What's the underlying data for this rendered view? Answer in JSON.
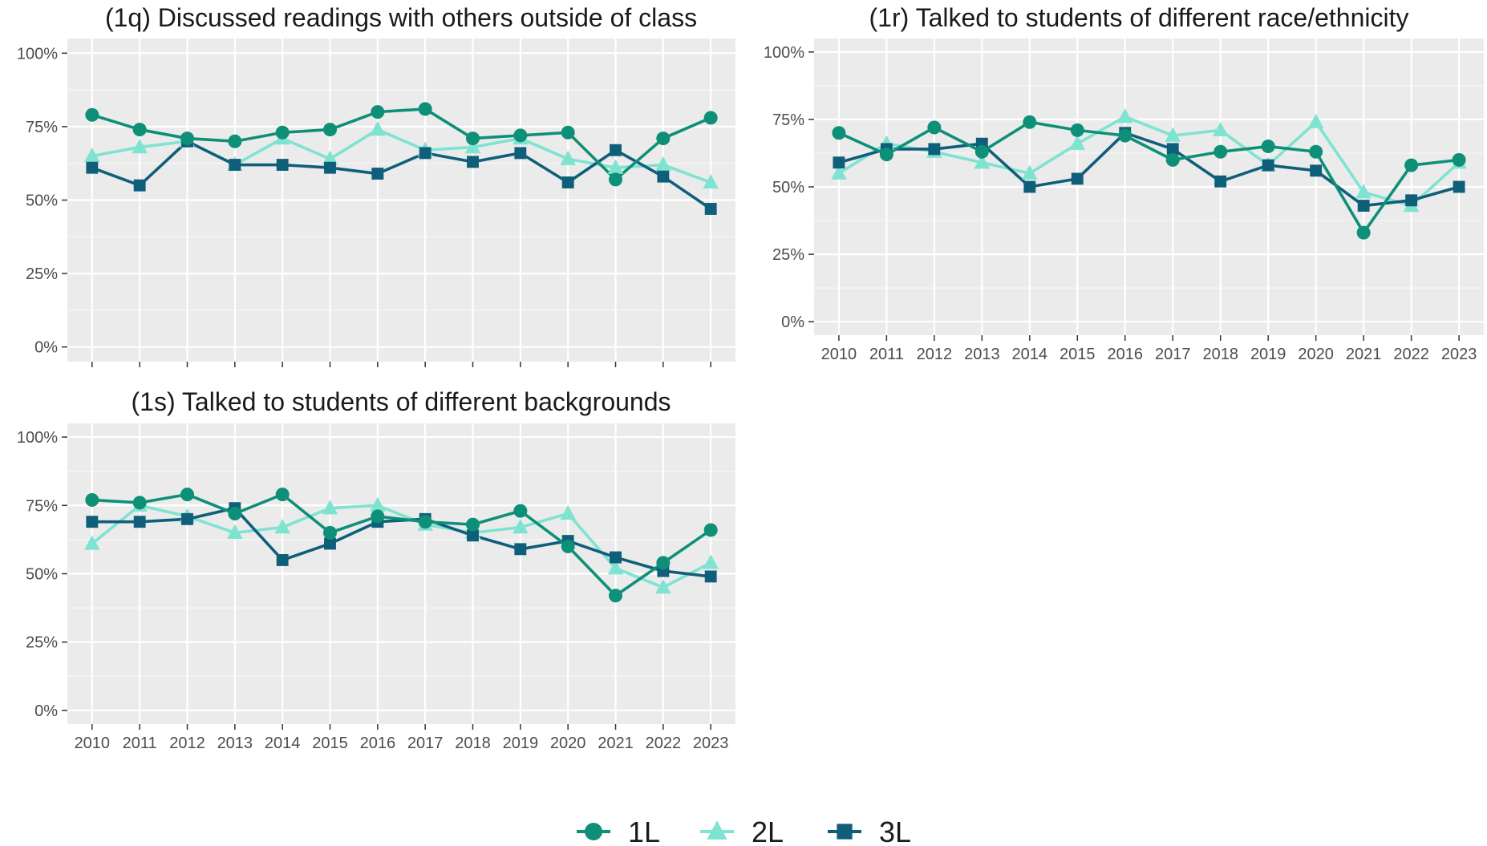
{
  "legend": {
    "items": [
      {
        "label": "1L",
        "color": "#0e8f78",
        "shape": "circle"
      },
      {
        "label": "2L",
        "color": "#7fe3d1",
        "shape": "triangle"
      },
      {
        "label": "3L",
        "color": "#0f5e7a",
        "shape": "square"
      }
    ]
  },
  "chart_data": [
    {
      "type": "line",
      "title": "(1q) Discussed readings with others outside of class",
      "x": [
        "2010",
        "2011",
        "2012",
        "2013",
        "2014",
        "2015",
        "2016",
        "2017",
        "2018",
        "2019",
        "2020",
        "2021",
        "2022",
        "2023"
      ],
      "ylim": [
        0,
        100
      ],
      "y_ticks": [
        "0%",
        "25%",
        "50%",
        "75%",
        "100%"
      ],
      "grid": true,
      "show_x_tick_labels": false,
      "series": [
        {
          "name": "1L",
          "color": "#0e8f78",
          "shape": "circle",
          "values": [
            79,
            74,
            71,
            70,
            73,
            74,
            80,
            81,
            71,
            72,
            73,
            57,
            71,
            78
          ]
        },
        {
          "name": "2L",
          "color": "#7fe3d1",
          "shape": "triangle",
          "values": [
            65,
            68,
            70,
            62,
            71,
            64,
            74,
            67,
            68,
            71,
            64,
            61,
            62,
            56
          ]
        },
        {
          "name": "3L",
          "color": "#0f5e7a",
          "shape": "square",
          "values": [
            61,
            55,
            70,
            62,
            62,
            61,
            59,
            66,
            63,
            66,
            56,
            67,
            58,
            47
          ]
        }
      ]
    },
    {
      "type": "line",
      "title": "(1r) Talked to students of different race/ethnicity",
      "x": [
        "2010",
        "2011",
        "2012",
        "2013",
        "2014",
        "2015",
        "2016",
        "2017",
        "2018",
        "2019",
        "2020",
        "2021",
        "2022",
        "2023"
      ],
      "ylim": [
        0,
        100
      ],
      "y_ticks": [
        "0%",
        "25%",
        "50%",
        "75%",
        "100%"
      ],
      "grid": true,
      "show_x_tick_labels": true,
      "series": [
        {
          "name": "1L",
          "color": "#0e8f78",
          "shape": "circle",
          "values": [
            70,
            62,
            72,
            63,
            74,
            71,
            69,
            60,
            63,
            65,
            63,
            33,
            58,
            60
          ]
        },
        {
          "name": "2L",
          "color": "#7fe3d1",
          "shape": "triangle",
          "values": [
            55,
            66,
            63,
            59,
            55,
            66,
            76,
            69,
            71,
            58,
            74,
            48,
            43,
            59
          ]
        },
        {
          "name": "3L",
          "color": "#0f5e7a",
          "shape": "square",
          "values": [
            59,
            64,
            64,
            66,
            50,
            53,
            70,
            64,
            52,
            58,
            56,
            43,
            45,
            50
          ]
        }
      ]
    },
    {
      "type": "line",
      "title": "(1s) Talked to students of different backgrounds",
      "x": [
        "2010",
        "2011",
        "2012",
        "2013",
        "2014",
        "2015",
        "2016",
        "2017",
        "2018",
        "2019",
        "2020",
        "2021",
        "2022",
        "2023"
      ],
      "ylim": [
        0,
        100
      ],
      "y_ticks": [
        "0%",
        "25%",
        "50%",
        "75%",
        "100%"
      ],
      "grid": true,
      "show_x_tick_labels": true,
      "series": [
        {
          "name": "1L",
          "color": "#0e8f78",
          "shape": "circle",
          "values": [
            77,
            76,
            79,
            72,
            79,
            65,
            71,
            69,
            68,
            73,
            60,
            42,
            54,
            66
          ]
        },
        {
          "name": "2L",
          "color": "#7fe3d1",
          "shape": "triangle",
          "values": [
            61,
            75,
            71,
            65,
            67,
            74,
            75,
            68,
            65,
            67,
            72,
            52,
            45,
            54
          ]
        },
        {
          "name": "3L",
          "color": "#0f5e7a",
          "shape": "square",
          "values": [
            69,
            69,
            70,
            74,
            55,
            61,
            69,
            70,
            64,
            59,
            62,
            56,
            51,
            49
          ]
        }
      ]
    }
  ]
}
